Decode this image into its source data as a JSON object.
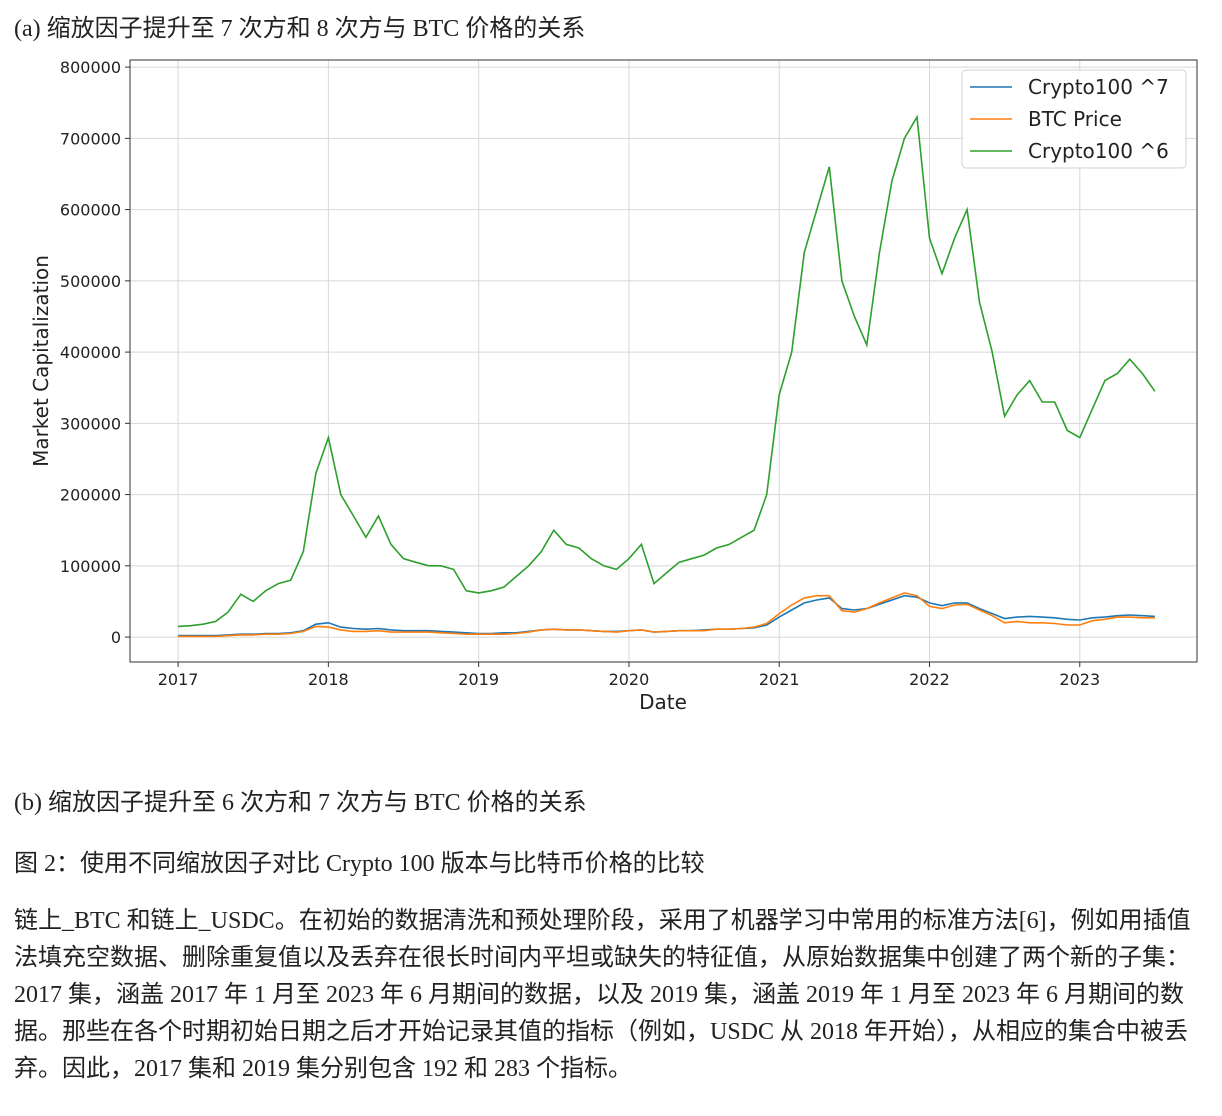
{
  "caption_a": "(a) 缩放因子提升至 7 次方和 8 次方与 BTC 价格的关系",
  "chart_data": {
    "type": "line",
    "xlabel": "Date",
    "ylabel": "Market Capitalization",
    "x": [
      2017,
      2017.083,
      2017.167,
      2017.25,
      2017.333,
      2017.417,
      2017.5,
      2017.583,
      2017.667,
      2017.75,
      2017.833,
      2017.917,
      2018,
      2018.083,
      2018.167,
      2018.25,
      2018.333,
      2018.417,
      2018.5,
      2018.583,
      2018.667,
      2018.75,
      2018.833,
      2018.917,
      2019,
      2019.083,
      2019.167,
      2019.25,
      2019.333,
      2019.417,
      2019.5,
      2019.583,
      2019.667,
      2019.75,
      2019.833,
      2019.917,
      2020,
      2020.083,
      2020.167,
      2020.25,
      2020.333,
      2020.417,
      2020.5,
      2020.583,
      2020.667,
      2020.75,
      2020.833,
      2020.917,
      2021,
      2021.083,
      2021.167,
      2021.25,
      2021.333,
      2021.417,
      2021.5,
      2021.583,
      2021.667,
      2021.75,
      2021.833,
      2021.917,
      2022,
      2022.083,
      2022.167,
      2022.25,
      2022.333,
      2022.417,
      2022.5,
      2022.583,
      2022.667,
      2022.75,
      2022.833,
      2022.917,
      2023,
      2023.083,
      2023.167,
      2023.25,
      2023.333,
      2023.417,
      2023.5
    ],
    "series": [
      {
        "name": "Crypto100 ^7",
        "color": "#1f77b4",
        "values": [
          2000,
          2000,
          2000,
          2000,
          3000,
          4000,
          4000,
          5000,
          5000,
          6000,
          9000,
          18000,
          20000,
          14000,
          12000,
          11000,
          12000,
          10000,
          9000,
          9000,
          9000,
          8000,
          7000,
          6000,
          5000,
          5000,
          6000,
          6000,
          8000,
          10000,
          11000,
          10000,
          10000,
          9000,
          8000,
          8000,
          9000,
          10000,
          7000,
          8000,
          9000,
          9000,
          10000,
          11000,
          11000,
          12000,
          13000,
          17000,
          28000,
          38000,
          48000,
          52000,
          55000,
          40000,
          38000,
          40000,
          46000,
          52000,
          58000,
          56000,
          48000,
          44000,
          48000,
          48000,
          40000,
          33000,
          26000,
          28000,
          29000,
          28000,
          27000,
          25000,
          24000,
          27000,
          28000,
          30000,
          31000,
          30000,
          29000
        ]
      },
      {
        "name": "BTC Price",
        "color": "#ff7f0e",
        "values": [
          1000,
          1000,
          1000,
          1000,
          2000,
          3000,
          3000,
          4000,
          4000,
          5000,
          8000,
          15000,
          14000,
          10000,
          8000,
          8000,
          9000,
          7000,
          7000,
          7000,
          7000,
          6000,
          5000,
          4000,
          4000,
          4000,
          4000,
          5000,
          7000,
          10000,
          11000,
          10000,
          10000,
          9000,
          8000,
          7000,
          9000,
          10000,
          7000,
          8000,
          9000,
          9000,
          9000,
          11000,
          11000,
          12000,
          14000,
          19000,
          33000,
          45000,
          55000,
          58000,
          58000,
          37000,
          35000,
          40000,
          48000,
          55000,
          62000,
          58000,
          43000,
          40000,
          45000,
          46000,
          38000,
          30000,
          20000,
          22000,
          20000,
          20000,
          19000,
          17000,
          17000,
          23000,
          25000,
          28000,
          28000,
          27000,
          27000
        ]
      },
      {
        "name": "Crypto100 ^6",
        "color": "#2ca02c",
        "values": [
          15000,
          16000,
          18000,
          22000,
          35000,
          60000,
          50000,
          65000,
          75000,
          80000,
          120000,
          230000,
          280000,
          200000,
          170000,
          140000,
          170000,
          130000,
          110000,
          105000,
          100000,
          100000,
          95000,
          65000,
          62000,
          65000,
          70000,
          85000,
          100000,
          120000,
          150000,
          130000,
          125000,
          110000,
          100000,
          95000,
          110000,
          130000,
          75000,
          90000,
          105000,
          110000,
          115000,
          125000,
          130000,
          140000,
          150000,
          200000,
          340000,
          400000,
          540000,
          600000,
          660000,
          500000,
          450000,
          410000,
          540000,
          640000,
          700000,
          730000,
          560000,
          510000,
          560000,
          600000,
          470000,
          400000,
          310000,
          340000,
          360000,
          330000,
          330000,
          290000,
          280000,
          320000,
          360000,
          370000,
          390000,
          370000,
          345000
        ]
      }
    ],
    "xlim": [
      2016.68,
      2023.78
    ],
    "xticks": [
      2017,
      2018,
      2019,
      2020,
      2021,
      2022,
      2023
    ],
    "ylim": [
      -35000,
      810000
    ],
    "yticks": [
      0,
      100000,
      200000,
      300000,
      400000,
      500000,
      600000,
      700000,
      800000
    ],
    "grid": true,
    "legend": "upper right"
  },
  "caption_b": "(b) 缩放因子提升至 6 次方和 7 次方与 BTC 价格的关系",
  "figure_caption": "图 2：使用不同缩放因子对比 Crypto 100 版本与比特币价格的比较",
  "paragraph": "链上_BTC 和链上_USDC。在初始的数据清洗和预处理阶段，采用了机器学习中常用的标准方法[6]，例如用插值法填充空数据、删除重复值以及丢弃在很长时间内平坦或缺失的特征值，从原始数据集中创建了两个新的子集：2017 集，涵盖 2017 年 1 月至 2023 年 6 月期间的数据，以及 2019 集，涵盖 2019 年 1 月至 2023 年 6 月期间的数据。那些在各个时期初始日期之后才开始记录其值的指标（例如，USDC 从 2018 年开始），从相应的集合中被丢弃。因此，2017 集和 2019 集分别包含 192 和 283 个指标。"
}
